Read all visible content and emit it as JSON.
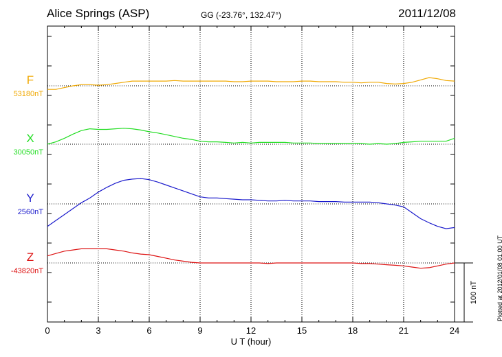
{
  "header": {
    "station": "Alice Springs (ASP)",
    "coords": "GG (-23.76°, 132.47°)",
    "date": "2011/12/08"
  },
  "footer": {
    "plotted": "Plotted at 2012/01/08 01:00 UT"
  },
  "chart_data": {
    "type": "line",
    "xlabel": "U T (hour)",
    "xlim": [
      0,
      24
    ],
    "xticks": [
      0,
      3,
      6,
      9,
      12,
      15,
      18,
      21,
      24
    ],
    "scale_bar": {
      "label": "100 nT",
      "value": 100
    },
    "series": [
      {
        "name": "F",
        "baseline_label": "53180nT",
        "color": "#f0a800",
        "x": [
          0,
          0.5,
          1,
          1.5,
          2,
          2.5,
          3,
          3.5,
          4,
          4.5,
          5,
          5.5,
          6,
          6.5,
          7,
          7.5,
          8,
          8.5,
          9,
          9.5,
          10,
          10.5,
          11,
          11.5,
          12,
          12.5,
          13,
          13.5,
          14,
          14.5,
          15,
          15.5,
          16,
          16.5,
          17,
          17.5,
          18,
          18.5,
          19,
          19.5,
          20,
          20.5,
          21,
          21.5,
          22,
          22.5,
          23,
          23.5,
          24
        ],
        "y": [
          -6,
          -6,
          -3,
          0,
          2,
          2,
          1,
          2,
          4,
          6,
          8,
          8,
          8,
          8,
          8,
          9,
          8,
          8,
          8,
          8,
          8,
          8,
          7,
          7,
          8,
          8,
          8,
          7,
          7,
          7,
          8,
          8,
          7,
          7,
          7,
          6,
          6,
          5,
          6,
          6,
          4,
          3,
          4,
          6,
          10,
          14,
          12,
          9,
          8
        ]
      },
      {
        "name": "X",
        "baseline_label": "30050nT",
        "color": "#22dd22",
        "x": [
          0,
          0.5,
          1,
          1.5,
          2,
          2.5,
          3,
          3.5,
          4,
          4.5,
          5,
          5.5,
          6,
          6.5,
          7,
          7.5,
          8,
          8.5,
          9,
          9.5,
          10,
          10.5,
          11,
          11.5,
          12,
          12.5,
          13,
          13.5,
          14,
          14.5,
          15,
          15.5,
          16,
          16.5,
          17,
          17.5,
          18,
          18.5,
          19,
          19.5,
          20,
          20.5,
          21,
          21.5,
          22,
          22.5,
          23,
          23.5,
          24
        ],
        "y": [
          0,
          4,
          10,
          17,
          23,
          26,
          25,
          25,
          26,
          27,
          26,
          24,
          21,
          19,
          16,
          13,
          10,
          8,
          5,
          4,
          4,
          3,
          2,
          3,
          2,
          3,
          3,
          3,
          3,
          2,
          2,
          2,
          1,
          1,
          1,
          1,
          1,
          1,
          0,
          1,
          0,
          1,
          3,
          4,
          5,
          5,
          5,
          5,
          10
        ]
      },
      {
        "name": "Y",
        "baseline_label": "2560nT",
        "color": "#1a1acc",
        "x": [
          0,
          0.5,
          1,
          1.5,
          2,
          2.5,
          3,
          3.5,
          4,
          4.5,
          5,
          5.5,
          6,
          6.5,
          7,
          7.5,
          8,
          8.5,
          9,
          9.5,
          10,
          10.5,
          11,
          11.5,
          12,
          12.5,
          13,
          13.5,
          14,
          14.5,
          15,
          15.5,
          16,
          16.5,
          17,
          17.5,
          18,
          18.5,
          19,
          19.5,
          20,
          20.5,
          21,
          21.5,
          22,
          22.5,
          23,
          23.5,
          24
        ],
        "y": [
          -38,
          -28,
          -18,
          -8,
          2,
          10,
          20,
          28,
          35,
          40,
          42,
          43,
          41,
          37,
          32,
          27,
          22,
          17,
          12,
          10,
          10,
          9,
          8,
          7,
          7,
          6,
          5,
          5,
          6,
          5,
          5,
          5,
          4,
          4,
          4,
          3,
          3,
          3,
          3,
          2,
          0,
          -2,
          -5,
          -15,
          -25,
          -32,
          -38,
          -42,
          -40
        ]
      },
      {
        "name": "Z",
        "baseline_label": "-43820nT",
        "color": "#dd1111",
        "x": [
          0,
          0.5,
          1,
          1.5,
          2,
          2.5,
          3,
          3.5,
          4,
          4.5,
          5,
          5.5,
          6,
          6.5,
          7,
          7.5,
          8,
          8.5,
          9,
          9.5,
          10,
          10.5,
          11,
          11.5,
          12,
          12.5,
          13,
          13.5,
          14,
          14.5,
          15,
          15.5,
          16,
          16.5,
          17,
          17.5,
          18,
          18.5,
          19,
          19.5,
          20,
          20.5,
          21,
          21.5,
          22,
          22.5,
          23,
          23.5,
          24
        ],
        "y": [
          12,
          16,
          20,
          22,
          24,
          24,
          24,
          24,
          22,
          20,
          17,
          15,
          14,
          11,
          8,
          5,
          3,
          1,
          0,
          0,
          0,
          0,
          0,
          0,
          0,
          0,
          -1,
          0,
          0,
          0,
          0,
          0,
          0,
          0,
          0,
          0,
          0,
          -1,
          -1,
          -2,
          -3,
          -4,
          -5,
          -7,
          -9,
          -8,
          -5,
          -2,
          0
        ]
      }
    ]
  }
}
